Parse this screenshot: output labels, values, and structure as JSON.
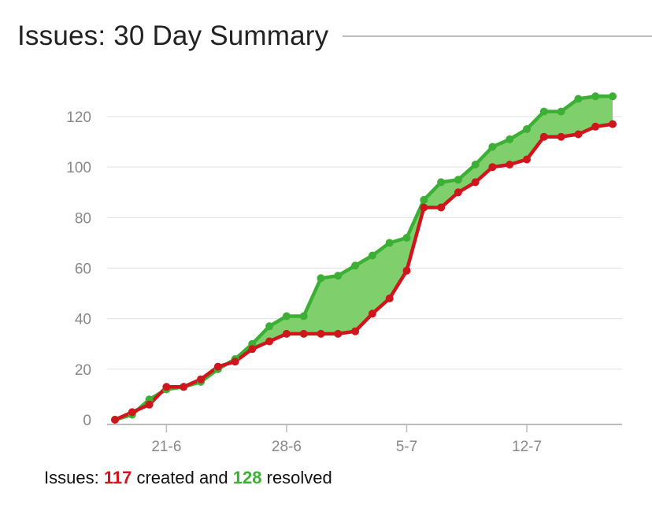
{
  "header": {
    "title": "Issues: 30 Day Summary"
  },
  "summary": {
    "prefix": "Issues:",
    "created_count": "117",
    "created_label": "created and",
    "resolved_count": "128",
    "resolved_label": "resolved"
  },
  "colors": {
    "created": "#d0151c",
    "resolved": "#3cb034",
    "fill": "#7fd06c",
    "grid": "#e0e0e0",
    "axis": "#bbbbbb",
    "tick_text": "#888888"
  },
  "chart_data": {
    "type": "area",
    "x": [
      "18-6",
      "19-6",
      "20-6",
      "21-6",
      "22-6",
      "23-6",
      "24-6",
      "25-6",
      "26-6",
      "27-6",
      "28-6",
      "29-6",
      "30-6",
      "1-7",
      "2-7",
      "3-7",
      "4-7",
      "5-7",
      "6-7",
      "7-7",
      "8-7",
      "9-7",
      "10-7",
      "11-7",
      "12-7",
      "13-7",
      "14-7",
      "15-7",
      "16-7",
      "17-7"
    ],
    "x_tick_labels": [
      "21-6",
      "28-6",
      "5-7",
      "12-7"
    ],
    "y_ticks": [
      0,
      20,
      40,
      60,
      80,
      100,
      120
    ],
    "ylim": [
      0,
      130
    ],
    "grid": true,
    "series": [
      {
        "key": "resolved",
        "values": [
          0,
          2,
          8,
          12,
          13,
          15,
          20,
          24,
          30,
          37,
          41,
          41,
          56,
          57,
          61,
          65,
          70,
          72,
          87,
          94,
          95,
          101,
          108,
          111,
          115,
          122,
          122,
          127,
          128,
          128
        ]
      },
      {
        "key": "created",
        "values": [
          0,
          3,
          6,
          13,
          13,
          16,
          21,
          23,
          28,
          31,
          34,
          34,
          34,
          34,
          35,
          42,
          48,
          59,
          84,
          84,
          90,
          94,
          100,
          101,
          103,
          112,
          112,
          113,
          116,
          117
        ]
      }
    ]
  }
}
